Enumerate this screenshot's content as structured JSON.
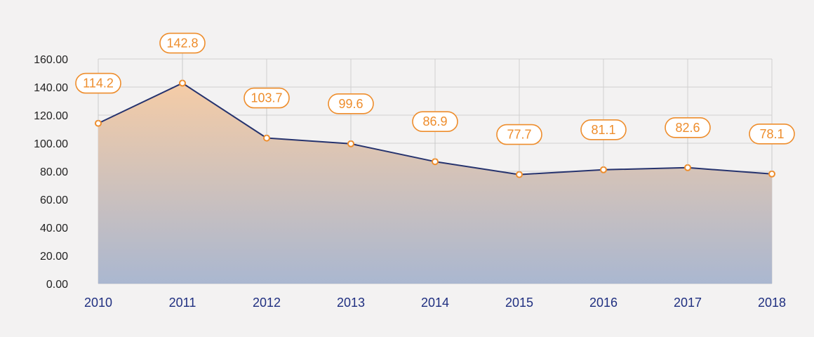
{
  "colors": {
    "background": "#f3f2f2",
    "grid": "#d0d0d0",
    "line": "#26336e",
    "accent": "#ee8d2c",
    "area_top": "#f5cca6",
    "area_bottom": "#aab7d0",
    "y_tick_text": "#222222",
    "x_tick_text": "#1f2f80"
  },
  "chart_data": {
    "type": "area",
    "x": [
      "2010",
      "2011",
      "2012",
      "2013",
      "2014",
      "2015",
      "2016",
      "2017",
      "2018"
    ],
    "values": [
      114.2,
      142.8,
      103.7,
      99.6,
      86.9,
      77.7,
      81.1,
      82.6,
      78.1
    ],
    "data_labels": [
      "114.2",
      "142.8",
      "103.7",
      "99.6",
      "86.9",
      "77.7",
      "81.1",
      "82.6",
      "78.1"
    ],
    "y_ticks": [
      "0.00",
      "20.00",
      "40.00",
      "60.00",
      "80.00",
      "100.00",
      "120.00",
      "140.00",
      "160.00"
    ],
    "ylim": [
      0,
      160
    ],
    "grid": true,
    "legend": "none"
  }
}
